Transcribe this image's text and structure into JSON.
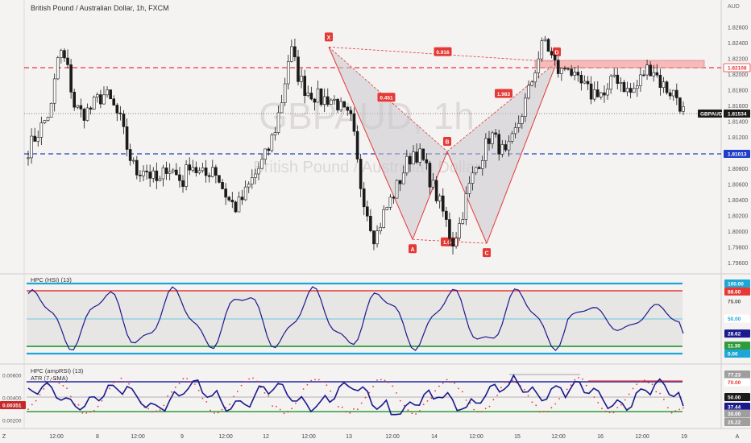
{
  "header": {
    "symbol": "British Pound / Australian Dollar, 1h, FXCM",
    "currency": "AUD"
  },
  "watermark": {
    "ticker": "GBPAUD, 1h",
    "name": "British Pound / Australian Dollar"
  },
  "price_axis": {
    "ticks": [
      "1.82600",
      "1.82400",
      "1.82200",
      "1.82000",
      "1.81800",
      "1.81600",
      "1.81400",
      "1.81200",
      "1.81000",
      "1.80800",
      "1.80600",
      "1.80400",
      "1.80200",
      "1.80000",
      "1.79800",
      "1.79600"
    ]
  },
  "price_tags": {
    "resistance": "1.82108",
    "ticker": "GBPAUD",
    "last": "1.81534",
    "support": "1.81013"
  },
  "pattern": {
    "points": [
      {
        "label": "X",
        "price": 1.8235
      },
      {
        "label": "A",
        "price": 1.799
      },
      {
        "label": "B",
        "price": 1.8102
      },
      {
        "label": "C",
        "price": 1.7985
      },
      {
        "label": "D",
        "price": 1.8216
      }
    ],
    "ratios": {
      "xb": "0.451",
      "xd": "0.916",
      "ac": "1.047",
      "bd": "1.983"
    }
  },
  "hsi": {
    "title": "HPC (HSI) (13)",
    "ticks": [
      "100.00",
      "88.60",
      "75.00",
      "50.00",
      "28.62",
      "11.30",
      "0.00"
    ]
  },
  "amprsi": {
    "title": "HPC (ampRSI) (13)",
    "atr_title": "ATR (7, SMA)",
    "left_ticks": [
      "0.00600",
      "0.00400",
      "0.00351",
      "0.00200"
    ],
    "right_ticks": [
      "77.23",
      "70.00",
      "50.00",
      "37.44",
      "30.00",
      "25.22"
    ]
  },
  "x_axis": {
    "labels": [
      "Z",
      "12:00",
      "8",
      "12:00",
      "9",
      "12:00",
      "12",
      "12:00",
      "13",
      "12:00",
      "14",
      "12:00",
      "15",
      "12:00",
      "16",
      "12:00",
      "19",
      "A"
    ]
  },
  "colors": {
    "up": "#1a1a1a",
    "down": "#1a1a1a",
    "resistance": "#e53935",
    "support": "#1e40c8",
    "pattern": "#e53935",
    "hsi_line": "#1a1a8c",
    "band_cyan": "#1ea7d6",
    "band_red": "#e53935",
    "band_green": "#2e9c3a"
  },
  "chart_data": {
    "type": "candlestick",
    "title": "British Pound / Australian Dollar, 1h, FXCM",
    "ylabel": "AUD",
    "ylim": [
      1.796,
      1.827
    ],
    "levels": {
      "resistance": 1.82108,
      "last": 1.81534,
      "support": 1.81013
    },
    "harmonic_pattern": {
      "X": 1.8235,
      "A": 1.799,
      "B": 1.8102,
      "C": 1.7985,
      "D": 1.8216,
      "ratios": {
        "XB": 0.451,
        "XD": 0.916,
        "AC": 1.047,
        "BD": 1.983
      }
    },
    "close_path": [
      1.8105,
      1.8122,
      1.8138,
      1.8158,
      1.8232,
      1.8212,
      1.816,
      1.815,
      1.8155,
      1.8168,
      1.8175,
      1.816,
      1.814,
      1.81,
      1.8075,
      1.8082,
      1.807,
      1.806,
      1.8085,
      1.8075,
      1.8062,
      1.809,
      1.8075,
      1.807,
      1.8085,
      1.806,
      1.804,
      1.803,
      1.8045,
      1.8065,
      1.8082,
      1.81,
      1.813,
      1.8172,
      1.8235,
      1.82,
      1.818,
      1.8175,
      1.8168,
      1.817,
      1.8165,
      1.815,
      1.814,
      1.8065,
      1.8025,
      1.799,
      1.802,
      1.804,
      1.806,
      1.8085,
      1.8102,
      1.8095,
      1.807,
      1.8045,
      1.802,
      1.7985,
      1.801,
      1.805,
      1.808,
      1.81,
      1.8125,
      1.811,
      1.8095,
      1.812,
      1.815,
      1.818,
      1.8216,
      1.8245,
      1.822,
      1.82,
      1.8215,
      1.819,
      1.8185,
      1.8175,
      1.818,
      1.817,
      1.82,
      1.819,
      1.8175,
      1.8185,
      1.8205,
      1.821,
      1.819,
      1.818,
      1.8175,
      1.8153
    ],
    "indicators": {
      "hsi": {
        "period": 13,
        "last": 28.62,
        "upper": 88.6,
        "lower": 11.3
      },
      "amprsi": {
        "period": 13,
        "last": 37.44,
        "upper": 70.0,
        "mid": 50.0,
        "lower": 30.0,
        "high": 77.23,
        "low": 25.22
      },
      "atr": {
        "period": 7,
        "type": "SMA",
        "last": 0.00351
      }
    }
  }
}
